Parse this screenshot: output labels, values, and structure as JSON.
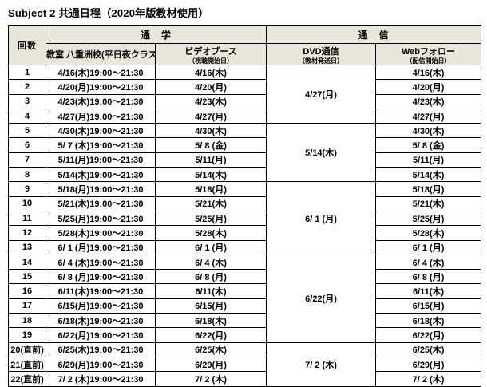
{
  "title": "Subject 2 共通日程（2020年版教材使用）",
  "colors": {
    "header_bg": "#eae6da",
    "border": "#000000",
    "text": "#000000"
  },
  "table": {
    "headers": {
      "kaisu": "回数",
      "tsugaku": "通　学",
      "tsushin": "通　信",
      "classroom": "教室 八重洲校(平日夜クラス)",
      "video_booth": "ビデオブース",
      "video_booth_note": "（視聴開始日）",
      "dvd": "DVD通信",
      "dvd_note": "（教材発送日）",
      "web": "Webフォロー",
      "web_note": "（配信開始日）"
    },
    "rows": [
      {
        "no": "1",
        "classroom": "4/16(木)19:00～21:30",
        "video": "4/16(木)",
        "web": "4/16(木)"
      },
      {
        "no": "2",
        "classroom": "4/20(月)19:00～21:30",
        "video": "4/20(月)",
        "web": "4/20(月)"
      },
      {
        "no": "3",
        "classroom": "4/23(木)19:00～21:30",
        "video": "4/23(木)",
        "web": "4/23(木)"
      },
      {
        "no": "4",
        "classroom": "4/27(月)19:00～21:30",
        "video": "4/27(月)",
        "web": "4/27(月)"
      },
      {
        "no": "5",
        "classroom": "4/30(木)19:00～21:30",
        "video": "4/30(木)",
        "web": "4/30(木)"
      },
      {
        "no": "6",
        "classroom": "5/ 7 (木)19:00～21:30",
        "video": "5/ 8 (金)",
        "web": "5/ 8 (金)"
      },
      {
        "no": "7",
        "classroom": "5/11(月)19:00～21:30",
        "video": "5/11(月)",
        "web": "5/11(月)"
      },
      {
        "no": "8",
        "classroom": "5/14(木)19:00～21:30",
        "video": "5/14(木)",
        "web": "5/14(木)"
      },
      {
        "no": "9",
        "classroom": "5/18(月)19:00～21:30",
        "video": "5/18(月)",
        "web": "5/18(月)"
      },
      {
        "no": "10",
        "classroom": "5/21(木)19:00～21:30",
        "video": "5/21(木)",
        "web": "5/21(木)"
      },
      {
        "no": "11",
        "classroom": "5/25(月)19:00～21:30",
        "video": "5/25(月)",
        "web": "5/25(月)"
      },
      {
        "no": "12",
        "classroom": "5/28(木)19:00～21:30",
        "video": "5/28(木)",
        "web": "5/28(木)"
      },
      {
        "no": "13",
        "classroom": "6/ 1 (月)19:00～21:30",
        "video": "6/ 1 (月)",
        "web": "6/ 1 (月)"
      },
      {
        "no": "14",
        "classroom": "6/ 4 (木)19:00～21:30",
        "video": "6/ 4 (木)",
        "web": "6/ 4 (木)"
      },
      {
        "no": "15",
        "classroom": "6/ 8 (月)19:00～21:30",
        "video": "6/ 8 (月)",
        "web": "6/ 8 (月)"
      },
      {
        "no": "16",
        "classroom": "6/11(木)19:00～21:30",
        "video": "6/11(木)",
        "web": "6/11(木)"
      },
      {
        "no": "17",
        "classroom": "6/15(月)19:00～21:30",
        "video": "6/15(月)",
        "web": "6/15(月)"
      },
      {
        "no": "18",
        "classroom": "6/18(木)19:00～21:30",
        "video": "6/18(木)",
        "web": "6/18(木)"
      },
      {
        "no": "19",
        "classroom": "6/22(月)19:00～21:30",
        "video": "6/22(月)",
        "web": "6/22(月)"
      },
      {
        "no": "20(直前)",
        "classroom": "6/25(木)19:00～21:30",
        "video": "6/25(木)",
        "web": "6/25(木)"
      },
      {
        "no": "21(直前)",
        "classroom": "6/29(月)19:00～21:30",
        "video": "6/29(月)",
        "web": "6/29(月)"
      },
      {
        "no": "22(直前)",
        "classroom": "7/ 2 (木)19:00～21:30",
        "video": "7/ 2 (木)",
        "web": "7/ 2 (木)"
      }
    ],
    "dvd_groups": [
      {
        "value": "4/27(月)",
        "span": 4
      },
      {
        "value": "5/14(木)",
        "span": 4
      },
      {
        "value": "6/ 1 (月)",
        "span": 5
      },
      {
        "value": "6/22(月)",
        "span": 6
      },
      {
        "value": "7/ 2 (木)",
        "span": 3
      }
    ]
  }
}
